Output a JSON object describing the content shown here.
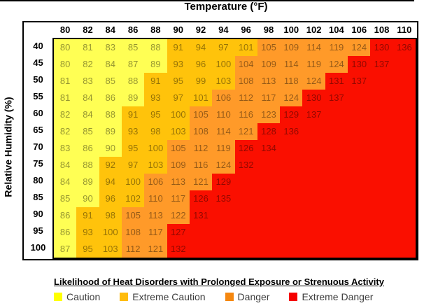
{
  "header": {
    "title": "Temperature (°F)"
  },
  "y_axis": {
    "label": "Relative Humidity (%)"
  },
  "legend": {
    "title": "Likelihood of Heat Disorders with Prolonged Exposure or Strenuous Activity"
  },
  "chart_data": {
    "type": "heatmap",
    "title": "Temperature (°F)",
    "xlabel": "Temperature (°F)",
    "ylabel": "Relative Humidity (%)",
    "x_ticks": [
      80,
      82,
      84,
      86,
      88,
      90,
      92,
      94,
      96,
      98,
      100,
      102,
      104,
      106,
      108,
      110
    ],
    "y_ticks": [
      40,
      45,
      50,
      55,
      60,
      65,
      70,
      75,
      80,
      85,
      90,
      95,
      100
    ],
    "rows": [
      [
        80,
        81,
        83,
        85,
        88,
        91,
        94,
        97,
        101,
        105,
        109,
        114,
        119,
        124,
        130,
        136
      ],
      [
        80,
        82,
        84,
        87,
        89,
        93,
        96,
        100,
        104,
        109,
        114,
        119,
        124,
        130,
        137
      ],
      [
        81,
        83,
        85,
        88,
        91,
        95,
        99,
        103,
        108,
        113,
        118,
        124,
        131,
        137
      ],
      [
        81,
        84,
        86,
        89,
        93,
        97,
        101,
        106,
        112,
        117,
        124,
        130,
        137
      ],
      [
        82,
        84,
        88,
        91,
        95,
        100,
        105,
        110,
        116,
        123,
        129,
        137
      ],
      [
        82,
        85,
        89,
        93,
        98,
        103,
        108,
        114,
        121,
        128,
        136
      ],
      [
        83,
        86,
        90,
        95,
        100,
        105,
        112,
        119,
        126,
        134
      ],
      [
        84,
        88,
        92,
        97,
        103,
        109,
        116,
        124,
        132
      ],
      [
        84,
        89,
        94,
        100,
        106,
        113,
        121,
        129
      ],
      [
        85,
        90,
        96,
        102,
        110,
        117,
        126,
        135
      ],
      [
        86,
        91,
        98,
        105,
        113,
        122,
        131
      ],
      [
        86,
        93,
        100,
        108,
        117,
        127
      ],
      [
        87,
        95,
        103,
        112,
        121,
        132
      ]
    ],
    "categories": [
      {
        "name": "Caution",
        "hi_max": 90,
        "cell_color": "#FFFF54",
        "legend_color": "#FFFF00"
      },
      {
        "name": "Extreme Caution",
        "hi_max": 103,
        "cell_color": "#FFC30B",
        "legend_color": "#FFBC0D"
      },
      {
        "name": "Danger",
        "hi_max": 124,
        "cell_color": "#FF9A29",
        "legend_color": "#F5870F"
      },
      {
        "name": "Extreme Danger",
        "hi_max": 999,
        "cell_color": "#FA0F00",
        "legend_color": "#F50000"
      }
    ],
    "note_empty_cells": "cells beyond each row's last value are Extreme Danger red",
    "grid": false,
    "legend_position": "bottom"
  }
}
